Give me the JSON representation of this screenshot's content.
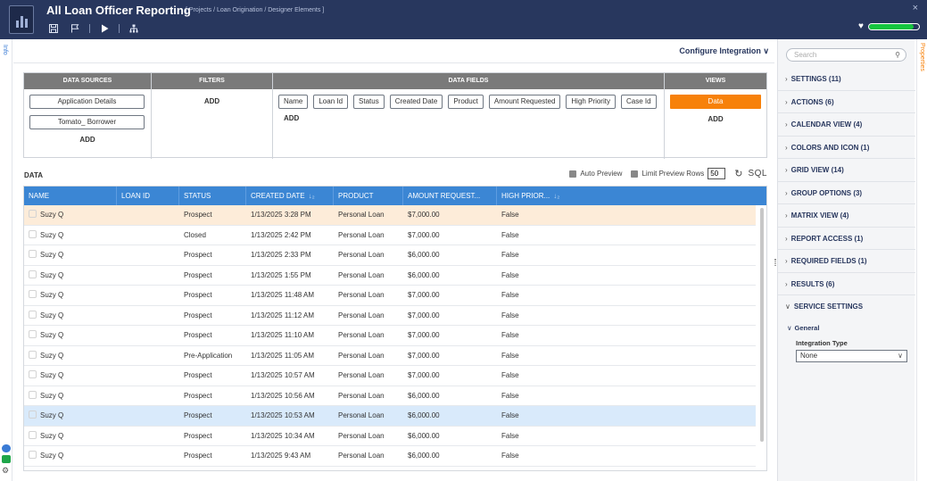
{
  "header": {
    "title": "All Loan Officer Reporting",
    "breadcrumb": "[ Projects / Loan Origination / Designer Elements ]",
    "close_glyph": "×",
    "progress_fraction": 0.9
  },
  "toolbar": {
    "icons": [
      "save-icon",
      "flag-icon",
      "play-icon",
      "hierarchy-icon"
    ]
  },
  "left_strip": {
    "info_label": "Info"
  },
  "main": {
    "configure_label": "Configure Integration ∨",
    "query_builder": {
      "data_sources": {
        "header": "DATA SOURCES",
        "items": [
          "Application Details",
          "Tomato_ Borrower"
        ],
        "add_label": "ADD"
      },
      "filters": {
        "header": "FILTERS",
        "add_label": "ADD"
      },
      "data_fields": {
        "header": "DATA FIELDS",
        "items": [
          "Name",
          "Loan Id",
          "Status",
          "Created Date",
          "Product",
          "Amount Requested",
          "High Priority",
          "Case Id"
        ],
        "add_label": "ADD"
      },
      "views": {
        "header": "VIEWS",
        "active_view": "Data",
        "add_label": "ADD"
      }
    },
    "data_label": "DATA",
    "preview": {
      "auto_preview_label": "Auto Preview",
      "limit_rows_label": "Limit Preview Rows",
      "limit_rows_value": "50",
      "sql_label": "SQL"
    },
    "grid": {
      "columns": [
        "NAME",
        "LOAN ID",
        "STATUS",
        "CREATED DATE",
        "PRODUCT",
        "AMOUNT REQUEST...",
        "HIGH PRIOR..."
      ],
      "sort_glyph": "↓₂",
      "rows": [
        {
          "name": "Suzy Q",
          "loan_id": "",
          "status": "Prospect",
          "created": "1/13/2025 3:28 PM",
          "product": "Personal Loan",
          "amount": "$7,000.00",
          "priority": "False",
          "highlight": "orange"
        },
        {
          "name": "Suzy Q",
          "loan_id": "",
          "status": "Closed",
          "created": "1/13/2025 2:42 PM",
          "product": "Personal Loan",
          "amount": "$7,000.00",
          "priority": "False",
          "highlight": ""
        },
        {
          "name": "Suzy Q",
          "loan_id": "",
          "status": "Prospect",
          "created": "1/13/2025 2:33 PM",
          "product": "Personal Loan",
          "amount": "$6,000.00",
          "priority": "False",
          "highlight": ""
        },
        {
          "name": "Suzy Q",
          "loan_id": "",
          "status": "Prospect",
          "created": "1/13/2025 1:55 PM",
          "product": "Personal Loan",
          "amount": "$6,000.00",
          "priority": "False",
          "highlight": ""
        },
        {
          "name": "Suzy Q",
          "loan_id": "",
          "status": "Prospect",
          "created": "1/13/2025 11:48 AM",
          "product": "Personal Loan",
          "amount": "$7,000.00",
          "priority": "False",
          "highlight": ""
        },
        {
          "name": "Suzy Q",
          "loan_id": "",
          "status": "Prospect",
          "created": "1/13/2025 11:12 AM",
          "product": "Personal Loan",
          "amount": "$7,000.00",
          "priority": "False",
          "highlight": ""
        },
        {
          "name": "Suzy Q",
          "loan_id": "",
          "status": "Prospect",
          "created": "1/13/2025 11:10 AM",
          "product": "Personal Loan",
          "amount": "$7,000.00",
          "priority": "False",
          "highlight": ""
        },
        {
          "name": "Suzy Q",
          "loan_id": "",
          "status": "Pre-Application",
          "created": "1/13/2025 11:05 AM",
          "product": "Personal Loan",
          "amount": "$7,000.00",
          "priority": "False",
          "highlight": ""
        },
        {
          "name": "Suzy Q",
          "loan_id": "",
          "status": "Prospect",
          "created": "1/13/2025 10:57 AM",
          "product": "Personal Loan",
          "amount": "$7,000.00",
          "priority": "False",
          "highlight": ""
        },
        {
          "name": "Suzy Q",
          "loan_id": "",
          "status": "Prospect",
          "created": "1/13/2025 10:56 AM",
          "product": "Personal Loan",
          "amount": "$6,000.00",
          "priority": "False",
          "highlight": ""
        },
        {
          "name": "Suzy Q",
          "loan_id": "",
          "status": "Prospect",
          "created": "1/13/2025 10:53 AM",
          "product": "Personal Loan",
          "amount": "$6,000.00",
          "priority": "False",
          "highlight": "blue"
        },
        {
          "name": "Suzy Q",
          "loan_id": "",
          "status": "Prospect",
          "created": "1/13/2025 10:34 AM",
          "product": "Personal Loan",
          "amount": "$6,000.00",
          "priority": "False",
          "highlight": ""
        },
        {
          "name": "Suzy Q",
          "loan_id": "",
          "status": "Prospect",
          "created": "1/13/2025 9:43 AM",
          "product": "Personal Loan",
          "amount": "$6,000.00",
          "priority": "False",
          "highlight": ""
        }
      ]
    }
  },
  "right_panel": {
    "search_placeholder": "Search",
    "sections": [
      "SETTINGS (11)",
      "ACTIONS (6)",
      "CALENDAR VIEW (4)",
      "COLORS AND ICON (1)",
      "GRID VIEW (14)",
      "GROUP OPTIONS (3)",
      "MATRIX VIEW (4)",
      "REPORT ACCESS (1)",
      "REQUIRED FIELDS (1)",
      "RESULTS (6)"
    ],
    "service_settings": {
      "label": "SERVICE SETTINGS",
      "general_label": "General",
      "integration_type_label": "Integration Type",
      "integration_type_value": "None"
    },
    "properties_label": "Properties"
  },
  "colors": {
    "header_bg": "#28375e",
    "accent_orange": "#f7810a",
    "grid_header_blue": "#3b86d4",
    "progress_green": "#15c43f"
  }
}
